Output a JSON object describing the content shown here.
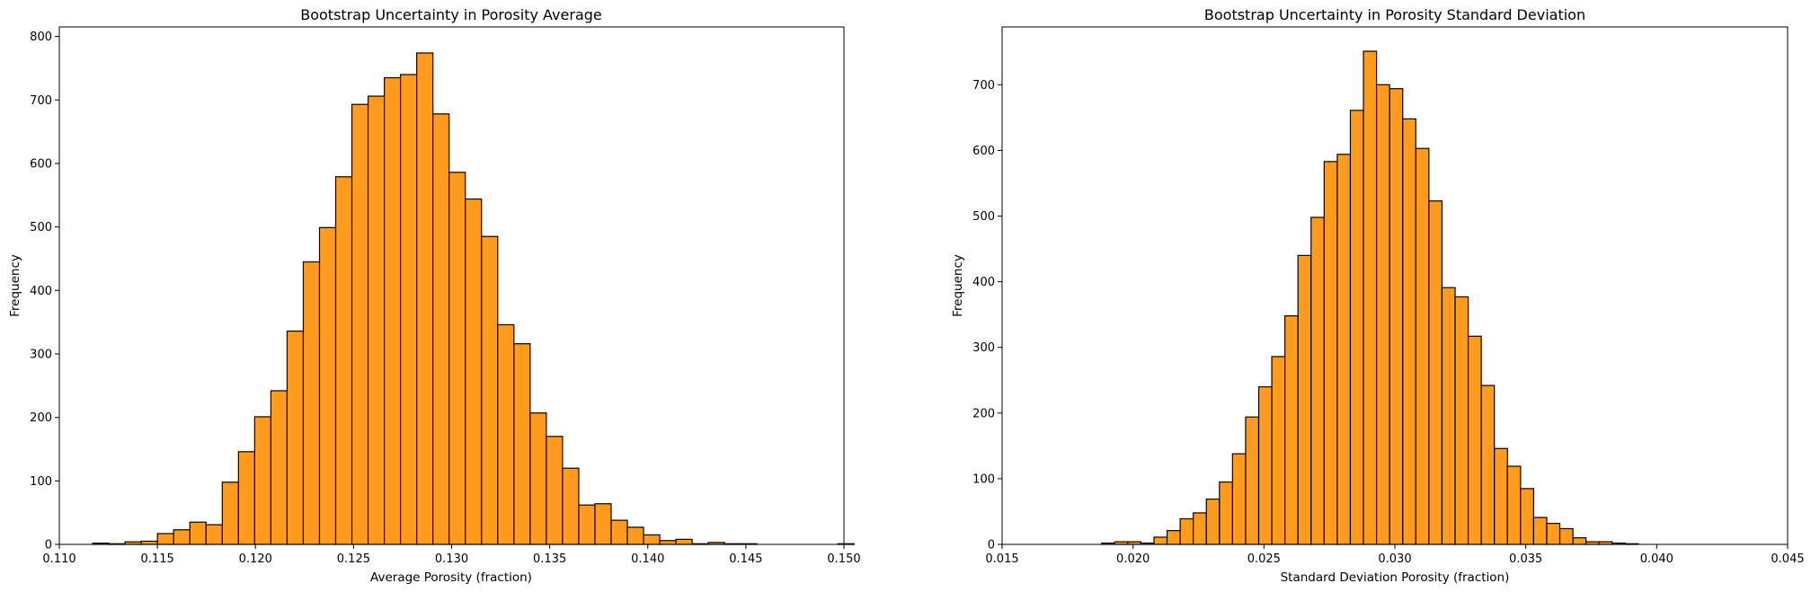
{
  "chart_data": [
    {
      "type": "bar",
      "title": "Bootstrap Uncertainty in Porosity Average",
      "xlabel": "Average Porosity (fraction)",
      "ylabel": "Frequency",
      "xlim": [
        0.11,
        0.15
      ],
      "ylim": [
        0,
        815
      ],
      "xticks": [
        0.11,
        0.115,
        0.12,
        0.125,
        0.13,
        0.135,
        0.14,
        0.145,
        0.15
      ],
      "xtick_labels": [
        "0.110",
        "0.115",
        "0.120",
        "0.125",
        "0.130",
        "0.135",
        "0.140",
        "0.145",
        "0.150"
      ],
      "yticks": [
        0,
        100,
        200,
        300,
        400,
        500,
        600,
        700,
        800
      ],
      "ytick_labels": [
        "0",
        "100",
        "200",
        "300",
        "400",
        "500",
        "600",
        "700",
        "800"
      ],
      "bins": {
        "start": 0.1117,
        "width": 0.000826,
        "counts": [
          2,
          1,
          4,
          5,
          17,
          23,
          35,
          31,
          98,
          146,
          201,
          242,
          336,
          445,
          499,
          579,
          693,
          706,
          735,
          740,
          774,
          678,
          586,
          544,
          485,
          346,
          316,
          207,
          170,
          120,
          62,
          64,
          38,
          27,
          15,
          6,
          8,
          1,
          3,
          1,
          1,
          0,
          0,
          0,
          0,
          0,
          1,
          0,
          0,
          0
        ]
      },
      "bar_color": "#ff9b1f",
      "edge_color": "#000000",
      "grid": false
    },
    {
      "type": "bar",
      "title": "Bootstrap Uncertainty in Porosity Standard Deviation",
      "xlabel": "Standard Deviation Porosity (fraction)",
      "ylabel": "Frequency",
      "xlim": [
        0.015,
        0.045
      ],
      "ylim": [
        0,
        788
      ],
      "xticks": [
        0.015,
        0.02,
        0.025,
        0.03,
        0.035,
        0.04,
        0.045
      ],
      "xtick_labels": [
        "0.015",
        "0.020",
        "0.025",
        "0.030",
        "0.035",
        "0.040",
        "0.045"
      ],
      "yticks": [
        0,
        100,
        200,
        300,
        400,
        500,
        600,
        700
      ],
      "ytick_labels": [
        "0",
        "100",
        "200",
        "300",
        "400",
        "500",
        "600",
        "700"
      ],
      "bins": {
        "start": 0.0188,
        "width": 0.0005,
        "counts": [
          2,
          4,
          4,
          2,
          11,
          21,
          39,
          48,
          69,
          95,
          138,
          194,
          240,
          286,
          348,
          440,
          498,
          583,
          594,
          661,
          751,
          700,
          694,
          648,
          603,
          523,
          391,
          377,
          317,
          242,
          146,
          119,
          85,
          41,
          32,
          24,
          10,
          4,
          4,
          2,
          1
        ]
      },
      "bar_color": "#ff9b1f",
      "edge_color": "#000000",
      "grid": false
    }
  ]
}
